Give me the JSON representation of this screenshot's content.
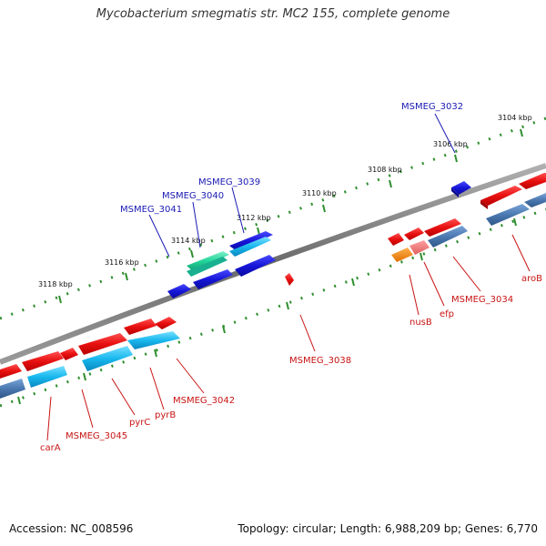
{
  "title": "Mycobacterium smegmatis str. MC2 155, complete genome",
  "footer": {
    "accession": "Accession: NC_008596",
    "summary": "Topology: circular; Length: 6,988,209 bp; Genes: 6,770"
  },
  "colors": {
    "backbone": "#7a7a7a",
    "tick": "#2f8f2f",
    "gene_red": "#e81010",
    "gene_blue": "#1616d8",
    "gene_cyan": "#18b8ee",
    "gene_steel": "#4a78b0",
    "gene_teal": "#22d49a",
    "gene_orange": "#f08010",
    "gene_pink": "#f07070",
    "label_blue": "#1a1ab4",
    "label_red": "#c81414"
  },
  "scale_labels": [
    "3104 kbp",
    "3106 kbp",
    "3108 kbp",
    "3110 kbp",
    "3112 kbp",
    "3114 kbp",
    "3116 kbp",
    "3118 kbp"
  ],
  "gene_labels_outer": [
    "MSMEG_3032",
    "MSMEG_3039",
    "MSMEG_3040",
    "MSMEG_3041"
  ],
  "gene_labels_inner": [
    "aroB",
    "MSMEG_3034",
    "efp",
    "nusB",
    "MSMEG_3038",
    "MSMEG_3042",
    "pyrB",
    "pyrC",
    "MSMEG_3045",
    "carA"
  ]
}
